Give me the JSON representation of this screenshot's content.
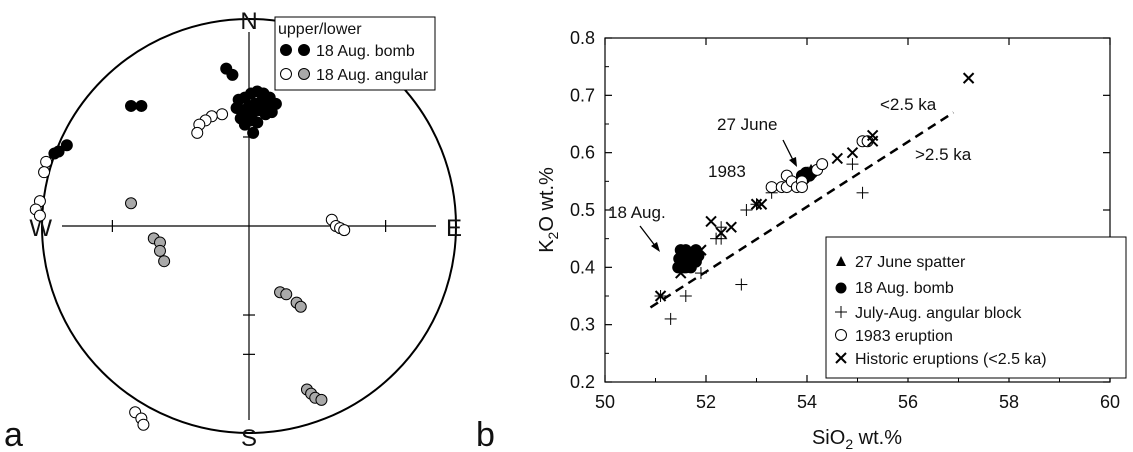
{
  "panels": {
    "a": {
      "label": "a"
    },
    "b": {
      "label": "b"
    }
  },
  "colors": {
    "black": "#000000",
    "gray_fill": "#a9a9a9",
    "white_fill": "#ffffff"
  },
  "chart_data": [
    {
      "type": "scatter",
      "projection": "stereonet",
      "compass": {
        "n": "N",
        "s": "S",
        "e": "E",
        "w": "W"
      },
      "legend": {
        "header": "upper/lower",
        "placement": "top-right",
        "entries": [
          {
            "label": "18 Aug. bomb",
            "symbols": [
              "filled-black",
              "filled-black"
            ]
          },
          {
            "label": "18 Aug. angular",
            "symbols": [
              "open-white",
              "filled-gray"
            ]
          }
        ]
      },
      "series": [
        {
          "symbol": "filled-black",
          "points": [
            [
              -0.11,
              0.76
            ],
            [
              -0.08,
              0.73
            ],
            [
              -0.57,
              0.58
            ],
            [
              -0.52,
              0.58
            ],
            [
              -0.88,
              0.39
            ],
            [
              -0.92,
              0.36
            ],
            [
              -0.94,
              0.35
            ],
            [
              -0.05,
              0.61
            ],
            [
              -0.02,
              0.62
            ],
            [
              0.01,
              0.64
            ],
            [
              0.04,
              0.65
            ],
            [
              0.07,
              0.64
            ],
            [
              0.1,
              0.62
            ],
            [
              -0.06,
              0.57
            ],
            [
              -0.03,
              0.56
            ],
            [
              0.0,
              0.58
            ],
            [
              0.03,
              0.59
            ],
            [
              0.06,
              0.6
            ],
            [
              0.09,
              0.58
            ],
            [
              0.13,
              0.59
            ],
            [
              -0.04,
              0.52
            ],
            [
              -0.01,
              0.53
            ],
            [
              0.02,
              0.55
            ],
            [
              0.05,
              0.56
            ],
            [
              0.08,
              0.54
            ],
            [
              0.11,
              0.55
            ],
            [
              -0.02,
              0.49
            ],
            [
              0.01,
              0.51
            ],
            [
              0.04,
              0.5
            ],
            [
              0.02,
              0.45
            ]
          ]
        },
        {
          "symbol": "open-white",
          "points": [
            [
              -0.13,
              0.54
            ],
            [
              -0.18,
              0.53
            ],
            [
              -0.21,
              0.51
            ],
            [
              -0.24,
              0.49
            ],
            [
              -0.25,
              0.45
            ],
            [
              -0.98,
              0.31
            ],
            [
              -0.99,
              0.26
            ],
            [
              -1.01,
              0.12
            ],
            [
              -1.03,
              0.08
            ],
            [
              -1.01,
              0.05
            ],
            [
              0.4,
              0.03
            ],
            [
              0.42,
              0.0
            ],
            [
              0.44,
              -0.01
            ],
            [
              0.46,
              -0.02
            ],
            [
              -0.55,
              -0.9
            ],
            [
              -0.52,
              -0.93
            ],
            [
              -0.51,
              -0.96
            ]
          ]
        },
        {
          "symbol": "filled-gray",
          "points": [
            [
              -0.57,
              0.11
            ],
            [
              -0.46,
              -0.06
            ],
            [
              -0.43,
              -0.08
            ],
            [
              -0.43,
              -0.12
            ],
            [
              -0.41,
              -0.17
            ],
            [
              0.15,
              -0.32
            ],
            [
              0.18,
              -0.33
            ],
            [
              0.23,
              -0.37
            ],
            [
              0.25,
              -0.39
            ],
            [
              0.28,
              -0.79
            ],
            [
              0.3,
              -0.81
            ],
            [
              0.32,
              -0.83
            ],
            [
              0.35,
              -0.84
            ]
          ]
        }
      ]
    },
    {
      "type": "scatter",
      "xlabel_main": "SiO",
      "xlabel_sub": "2",
      "xlabel_rest": " wt.%",
      "ylabel_main": "K",
      "ylabel_sub": "2",
      "ylabel_rest": "O wt.%",
      "xlim": [
        50,
        60
      ],
      "ylim": [
        0.2,
        0.8
      ],
      "xticks": [
        "50",
        "52",
        "54",
        "56",
        "58",
        "60"
      ],
      "yticks": [
        "0.2",
        "0.3",
        "0.4",
        "0.5",
        "0.6",
        "0.7",
        "0.8"
      ],
      "boundary_line": {
        "from": [
          50.9,
          0.33
        ],
        "to": [
          56.9,
          0.67
        ],
        "style": "dashed"
      },
      "annotations": {
        "young": "<2.5 ka",
        "old": ">2.5 ka",
        "june": "27 June",
        "aug": "18 Aug.",
        "y1983": "1983"
      },
      "legend": {
        "placement": "bottom-right",
        "entries": [
          {
            "symbol": "triangle",
            "label": "27 June spatter"
          },
          {
            "symbol": "filled-circle",
            "label": "18 Aug. bomb"
          },
          {
            "symbol": "plus",
            "label": "July-Aug. angular block"
          },
          {
            "symbol": "open-circle",
            "label": "1983 eruption"
          },
          {
            "symbol": "cross",
            "label": "Historic eruptions (<2.5 ka)"
          }
        ]
      },
      "series": [
        {
          "symbol": "triangle",
          "points": [
            [
              53.98,
              0.562
            ],
            [
              54.02,
              0.566
            ],
            [
              54.08,
              0.57
            ]
          ]
        },
        {
          "symbol": "filled-circle",
          "points": [
            [
              51.45,
              0.4
            ],
            [
              51.5,
              0.41
            ],
            [
              51.55,
              0.42
            ],
            [
              51.6,
              0.4
            ],
            [
              51.65,
              0.41
            ],
            [
              51.7,
              0.4
            ],
            [
              51.75,
              0.42
            ],
            [
              51.5,
              0.43
            ],
            [
              51.6,
              0.43
            ],
            [
              51.7,
              0.42
            ],
            [
              51.8,
              0.41
            ],
            [
              51.55,
              0.4
            ],
            [
              51.65,
              0.42
            ],
            [
              51.8,
              0.43
            ],
            [
              51.47,
              0.415
            ],
            [
              51.58,
              0.405
            ],
            [
              51.72,
              0.415
            ],
            [
              51.85,
              0.42
            ],
            [
              53.9,
              0.56
            ],
            [
              53.95,
              0.555
            ],
            [
              54.0,
              0.56
            ],
            [
              54.05,
              0.56
            ],
            [
              54.1,
              0.565
            ],
            [
              53.98,
              0.565
            ]
          ]
        },
        {
          "symbol": "plus",
          "points": [
            [
              51.3,
              0.31
            ],
            [
              51.6,
              0.35
            ],
            [
              51.9,
              0.39
            ],
            [
              52.2,
              0.45
            ],
            [
              52.3,
              0.45
            ],
            [
              52.3,
              0.47
            ],
            [
              52.7,
              0.37
            ],
            [
              52.8,
              0.5
            ],
            [
              53.0,
              0.51
            ],
            [
              53.3,
              0.53
            ],
            [
              54.9,
              0.58
            ],
            [
              55.1,
              0.53
            ],
            [
              51.1,
              0.35
            ]
          ]
        },
        {
          "symbol": "open-circle",
          "points": [
            [
              53.3,
              0.54
            ],
            [
              53.5,
              0.54
            ],
            [
              53.6,
              0.54
            ],
            [
              53.6,
              0.56
            ],
            [
              53.7,
              0.55
            ],
            [
              53.8,
              0.54
            ],
            [
              53.9,
              0.55
            ],
            [
              53.9,
              0.54
            ],
            [
              54.2,
              0.57
            ],
            [
              54.3,
              0.58
            ],
            [
              55.1,
              0.62
            ],
            [
              55.2,
              0.62
            ]
          ]
        },
        {
          "symbol": "cross",
          "points": [
            [
              51.1,
              0.35
            ],
            [
              51.5,
              0.39
            ],
            [
              51.9,
              0.43
            ],
            [
              52.1,
              0.48
            ],
            [
              52.3,
              0.46
            ],
            [
              52.5,
              0.47
            ],
            [
              53.0,
              0.51
            ],
            [
              53.1,
              0.51
            ],
            [
              54.6,
              0.59
            ],
            [
              54.9,
              0.6
            ],
            [
              55.3,
              0.62
            ],
            [
              55.3,
              0.63
            ],
            [
              57.2,
              0.73
            ]
          ]
        }
      ]
    }
  ]
}
